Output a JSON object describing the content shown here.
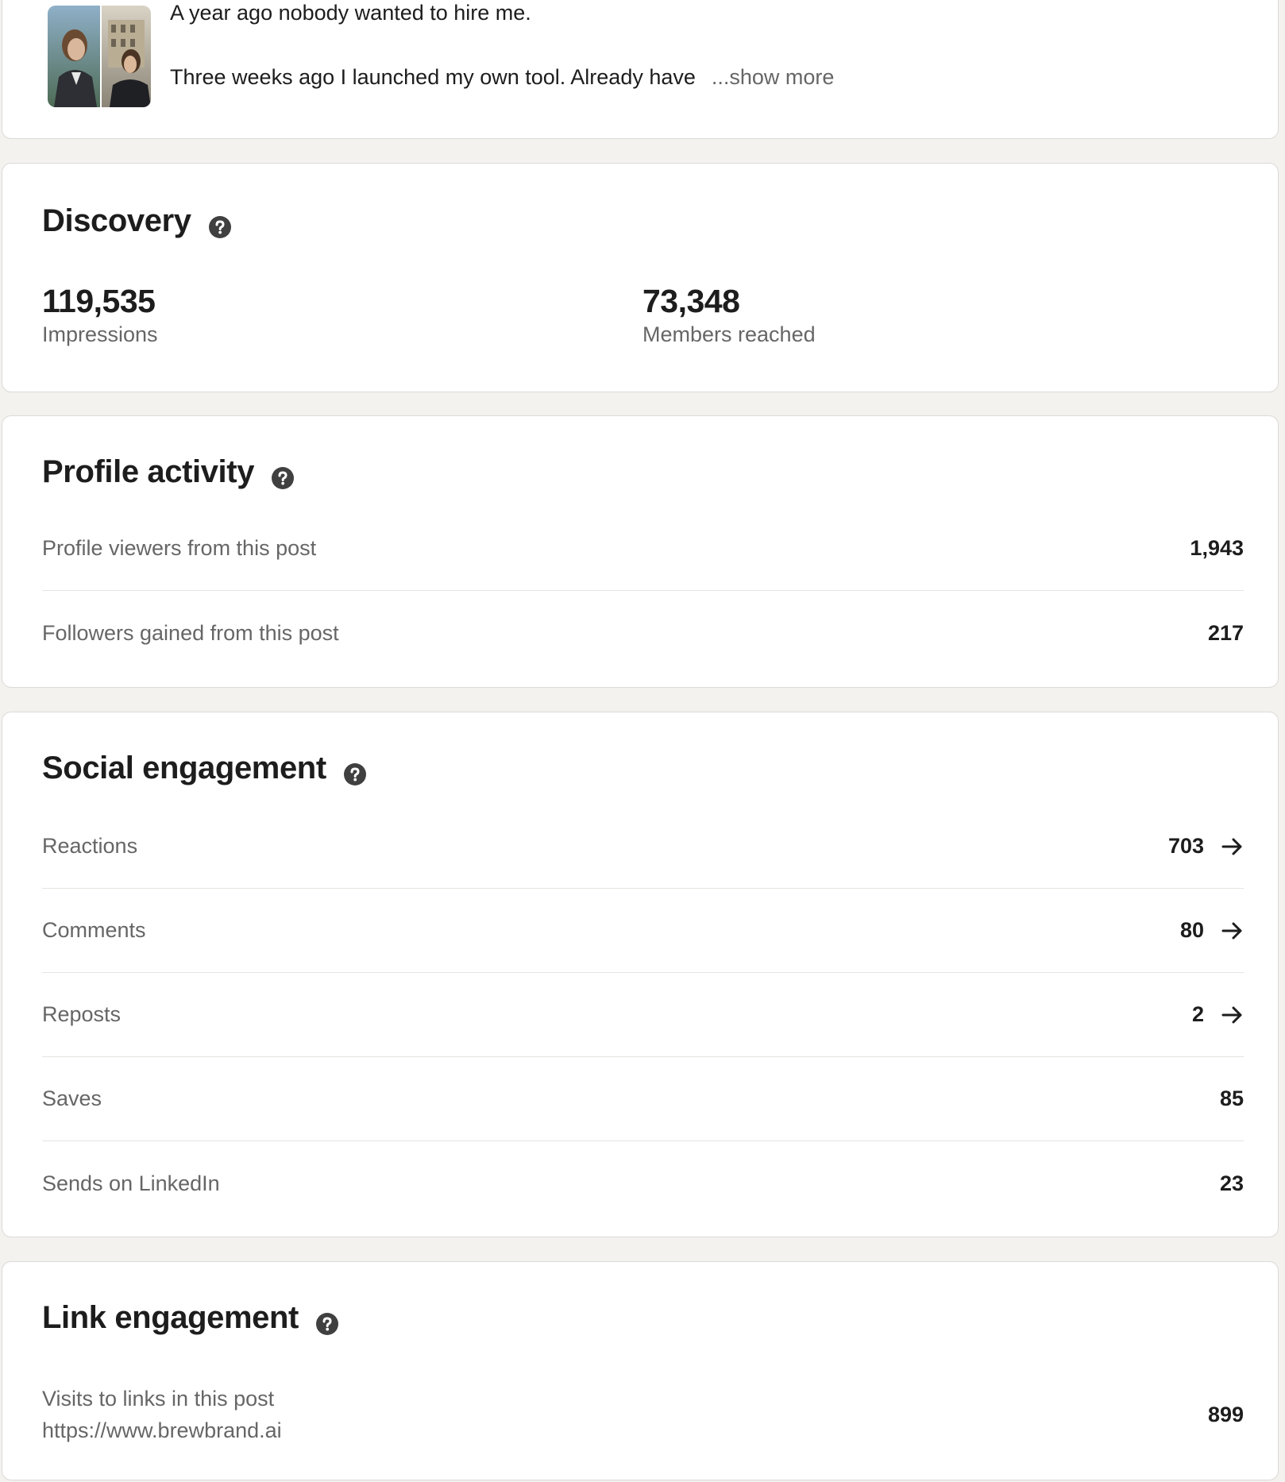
{
  "post": {
    "line1": "A year ago nobody wanted to hire me.",
    "line2": "Three weeks ago I launched my own tool. Already have",
    "show_more": "...show more"
  },
  "discovery": {
    "title": "Discovery",
    "impressions_value": "119,535",
    "impressions_label": "Impressions",
    "members_value": "73,348",
    "members_label": "Members reached"
  },
  "profile_activity": {
    "title": "Profile activity",
    "rows": [
      {
        "label": "Profile viewers from this post",
        "value": "1,943"
      },
      {
        "label": "Followers gained from this post",
        "value": "217"
      }
    ]
  },
  "social_engagement": {
    "title": "Social engagement",
    "rows": [
      {
        "label": "Reactions",
        "value": "703"
      },
      {
        "label": "Comments",
        "value": "80"
      },
      {
        "label": "Reposts",
        "value": "2"
      },
      {
        "label": "Saves",
        "value": "85"
      },
      {
        "label": "Sends on LinkedIn",
        "value": "23"
      }
    ]
  },
  "link_engagement": {
    "title": "Link engagement",
    "label_line1": "Visits to links in this post",
    "label_line2": "https://www.brewbrand.ai",
    "value": "899"
  },
  "icons": {
    "help": "question-circle-icon",
    "arrow": "arrow-right-icon"
  },
  "colors": {
    "background": "#f3f2ef",
    "card": "#ffffff",
    "text_primary": "#1d1d1d",
    "text_secondary": "#666666",
    "divider": "#e6e4e0"
  }
}
